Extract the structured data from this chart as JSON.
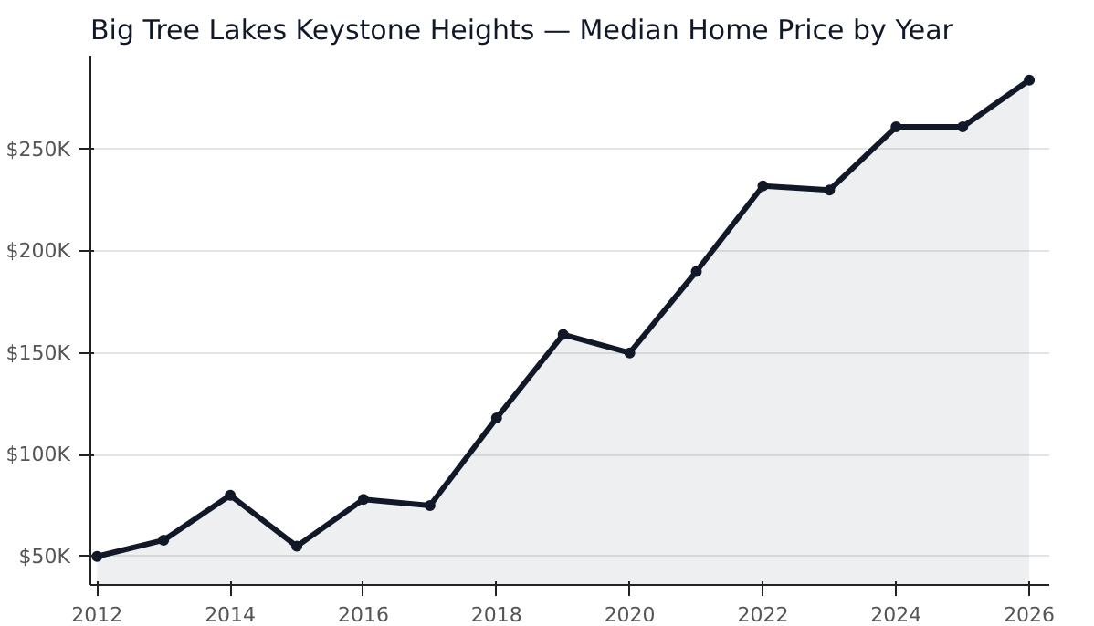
{
  "chart_data": {
    "type": "area",
    "title": "Big Tree Lakes Keystone Heights — Median Home Price by Year",
    "x": [
      2012,
      2013,
      2014,
      2015,
      2016,
      2017,
      2018,
      2019,
      2020,
      2021,
      2022,
      2023,
      2024,
      2025,
      2026
    ],
    "series": [
      {
        "color": "#111827",
        "values": [
          50,
          58,
          80,
          55,
          78,
          75,
          118,
          159,
          150,
          190,
          232,
          230,
          261,
          261,
          284
        ]
      }
    ],
    "xlim": [
      2011.9,
      2026.3
    ],
    "ylim": [
      36,
      296
    ],
    "xticks": [
      2012,
      2014,
      2016,
      2018,
      2020,
      2022,
      2024,
      2026
    ],
    "yticks": [
      {
        "value": 50,
        "label": "$50K"
      },
      {
        "value": 100,
        "label": "$100K"
      },
      {
        "value": 150,
        "label": "$150K"
      },
      {
        "value": 200,
        "label": "$200K"
      },
      {
        "value": 250,
        "label": "$250K"
      }
    ],
    "grid": "y",
    "marker": "circle",
    "line_style": "solid"
  }
}
